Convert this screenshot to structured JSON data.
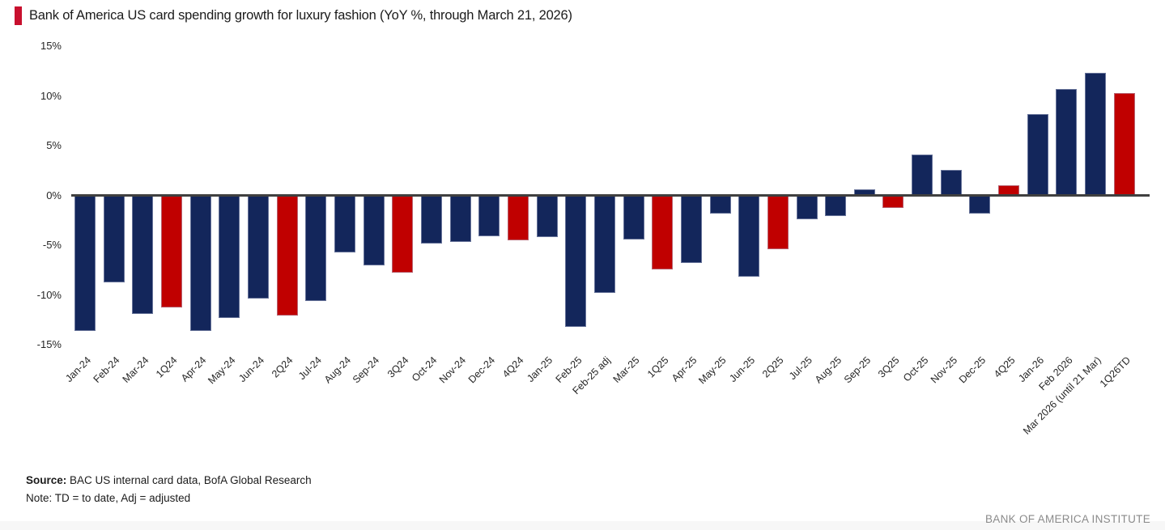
{
  "header": {
    "title": "Bank of America US card spending growth for luxury fashion (YoY %, through March 21, 2026)",
    "accent_color": "#C8102E"
  },
  "chart_data": {
    "type": "bar",
    "title": "Bank of America US card spending growth for luxury fashion (YoY %, through March 21, 2026)",
    "xlabel": "",
    "ylabel": "YoY %",
    "ylim": [
      -15,
      15
    ],
    "ytick_step": 5,
    "yticks": [
      "15%",
      "10%",
      "5%",
      "0%",
      "-5%",
      "-10%",
      "-15%"
    ],
    "grid": false,
    "legend": "none",
    "colors": {
      "month_bar": "#13265B",
      "quarter_bar": "#C00000",
      "zero_axis": "#404040"
    },
    "categories": [
      "Jan-24",
      "Feb-24",
      "Mar-24",
      "1Q24",
      "Apr-24",
      "May-24",
      "Jun-24",
      "2Q24",
      "Jul-24",
      "Aug-24",
      "Sep-24",
      "3Q24",
      "Oct-24",
      "Nov-24",
      "Dec-24",
      "4Q24",
      "Jan-25",
      "Feb-25",
      "Feb-25 adj",
      "Mar-25",
      "1Q25",
      "Apr-25",
      "May-25",
      "Jun-25",
      "2Q25",
      "Jul-25",
      "Aug-25",
      "Sep-25",
      "3Q25",
      "Oct-25",
      "Nov-25",
      "Dec-25",
      "4Q25",
      "Jan-26",
      "Feb 2026",
      "Mar 2026 (until 21 Mar)",
      "1Q26TD"
    ],
    "values": [
      -13.6,
      -8.7,
      -11.9,
      -11.3,
      -13.6,
      -12.3,
      -10.4,
      -12.1,
      -10.6,
      -5.7,
      -7.0,
      -7.8,
      -4.8,
      -4.7,
      -4.1,
      -4.5,
      -4.2,
      -13.2,
      -9.8,
      -4.4,
      -7.4,
      -6.8,
      -1.8,
      -8.2,
      -5.4,
      -2.4,
      -2.1,
      0.6,
      -1.3,
      4.1,
      2.6,
      -1.8,
      1.0,
      8.2,
      10.7,
      12.3,
      10.3
    ],
    "bar_types": [
      "month",
      "month",
      "month",
      "quarter",
      "month",
      "month",
      "month",
      "quarter",
      "month",
      "month",
      "month",
      "quarter",
      "month",
      "month",
      "month",
      "quarter",
      "month",
      "month",
      "month",
      "month",
      "quarter",
      "month",
      "month",
      "month",
      "quarter",
      "month",
      "month",
      "month",
      "quarter",
      "month",
      "month",
      "month",
      "quarter",
      "month",
      "month",
      "month",
      "quarter"
    ]
  },
  "footer": {
    "source_label": "Source:",
    "source_text": " BAC US internal card data, BofA Global Research",
    "note": "Note: TD = to date, Adj = adjusted",
    "branding": "BANK OF AMERICA INSTITUTE"
  }
}
